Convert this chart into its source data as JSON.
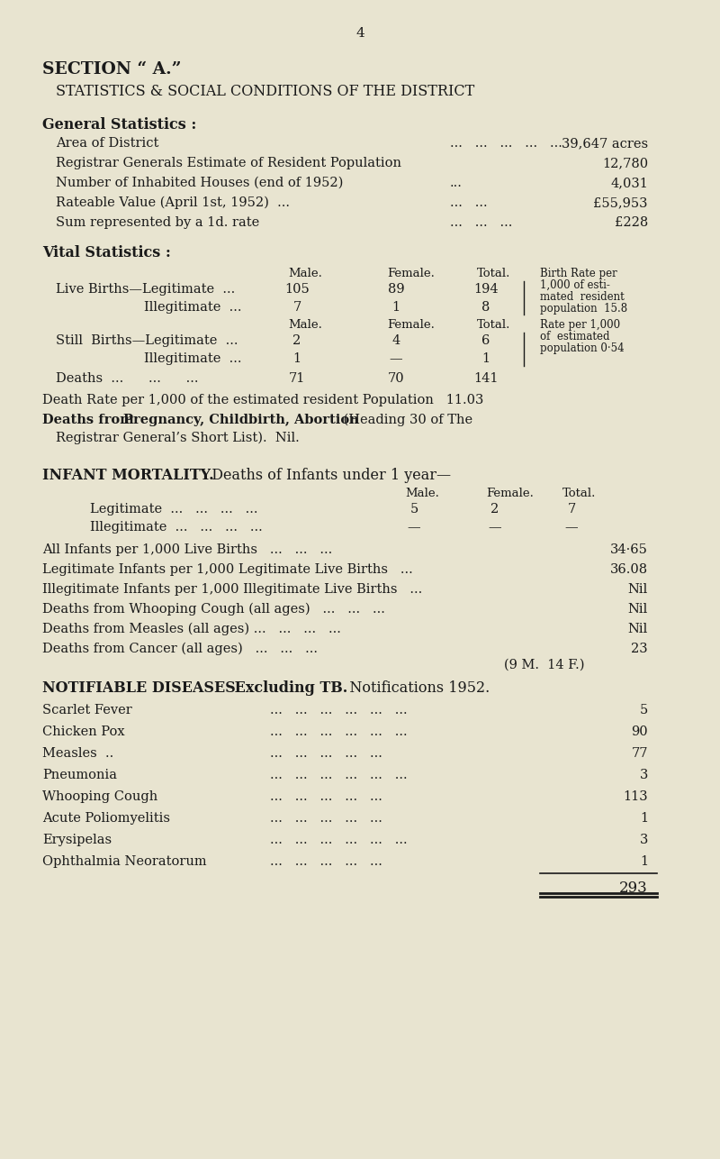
{
  "bg_color": "#e8e4d0",
  "text_color": "#1a1a1a",
  "page_number": "4",
  "section_title": "SECTION “ A.”",
  "subtitle": "STATISTICS & SOCIAL CONDITIONS OF THE DISTRICT",
  "general_stats_title": "General Statistics :",
  "general_stats": [
    [
      "Area of District",
      "39,647 acres"
    ],
    [
      "Registrar Generals Estimate of Resident Population",
      "12,780"
    ],
    [
      "Number of Inhabited Houses (end of 1952)",
      "4,031"
    ],
    [
      "Rateable Value (April 1st, 1952)  ...   ...   ...",
      "£55,953"
    ],
    [
      "Sum represented by a 1d. rate   ...   ...   ...",
      "£228"
    ]
  ],
  "vital_stats_title": "Vital Statistics :",
  "live_births_leg": [
    "105",
    "89",
    "194"
  ],
  "live_births_illeg": [
    "7",
    "1",
    "8"
  ],
  "birth_rate_note": [
    "Birth Rate per",
    "1,000 of esti-",
    "mated  resident",
    "population  15.8"
  ],
  "still_births_leg": [
    "2",
    "4",
    "6"
  ],
  "still_births_illeg": [
    "1",
    "—",
    "1"
  ],
  "rate_note": [
    "Rate per 1,000",
    "of  estimated",
    "population 0·54"
  ],
  "deaths": [
    "71",
    "70",
    "141"
  ],
  "death_rate_line": "Death Rate per 1,000 of the estimated resident Population   11.03",
  "infant_legit": [
    "5",
    "2",
    "7"
  ],
  "infant_illeg": [
    "—",
    "—",
    "—"
  ],
  "infant_stats_rows": [
    [
      "All Infants per 1,000 Live Births   ...   ...   ...",
      "34·65"
    ],
    [
      "Legitimate Infants per 1,000 Legitimate Live Births   ...",
      "36.08"
    ],
    [
      "Illegitimate Infants per 1,000 Illegitimate Live Births   ...",
      "Nil"
    ],
    [
      "Deaths from Whooping Cough (all ages)   ...   ...   ...",
      "Nil"
    ],
    [
      "Deaths from Measles (all ages) ...   ...   ...   ...",
      "Nil"
    ],
    [
      "Deaths from Cancer (all ages)   ...   ...   ...",
      "23"
    ]
  ],
  "cancer_sub": "(9 M.  14 F.)",
  "notifiable_diseases": [
    [
      "Scarlet Fever",
      "5"
    ],
    [
      "Chicken Pox",
      "90"
    ],
    [
      "Measles  ..",
      "77"
    ],
    [
      "Pneumonia",
      "3"
    ],
    [
      "Whooping Cough",
      "113"
    ],
    [
      "Acute Poliomyelitis",
      "1"
    ],
    [
      "Erysipelas",
      "3"
    ],
    [
      "Ophthalmia Neoratorum",
      "1"
    ]
  ],
  "total_line": "293",
  "dots_positions": [
    "... ... ... ... ...",
    "",
    "...",
    "",
    ""
  ]
}
